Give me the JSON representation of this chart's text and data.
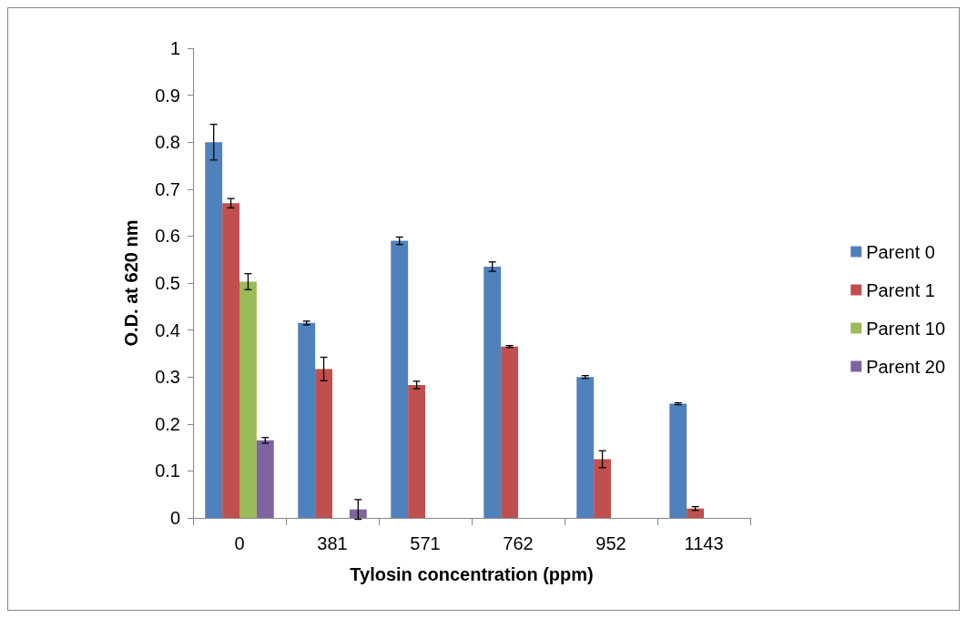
{
  "chart_data": {
    "type": "bar",
    "xlabel": "Tylosin concentration (ppm)",
    "ylabel": "O.D. at 620 nm",
    "categories": [
      "0",
      "381",
      "571",
      "762",
      "952",
      "1143"
    ],
    "series": [
      {
        "name": "Parent 0",
        "color": "#4f81bd",
        "values": [
          0.8,
          0.415,
          0.59,
          0.535,
          0.3,
          0.243
        ],
        "errors": [
          0.038,
          0.004,
          0.008,
          0.01,
          0.003,
          0.002
        ]
      },
      {
        "name": "Parent 1",
        "color": "#c0504d",
        "values": [
          0.67,
          0.317,
          0.283,
          0.365,
          0.125,
          0.02
        ],
        "errors": [
          0.01,
          0.025,
          0.008,
          0.002,
          0.018,
          0.004
        ]
      },
      {
        "name": "Parent 10",
        "color": "#9bbb59",
        "values": [
          0.503,
          0,
          0,
          0,
          0,
          0
        ],
        "errors": [
          0.017,
          null,
          null,
          null,
          null,
          null
        ]
      },
      {
        "name": "Parent 20",
        "color": "#8064a2",
        "values": [
          0.165,
          0.018,
          0,
          0,
          0,
          0
        ],
        "errors": [
          0.006,
          0.021,
          null,
          null,
          null,
          null
        ]
      }
    ],
    "ylim": [
      0,
      1
    ],
    "yticks": [
      0,
      0.1,
      0.2,
      0.3,
      0.4,
      0.5,
      0.6,
      0.7,
      0.8,
      0.9,
      1
    ],
    "grid": false,
    "legend": "right"
  }
}
